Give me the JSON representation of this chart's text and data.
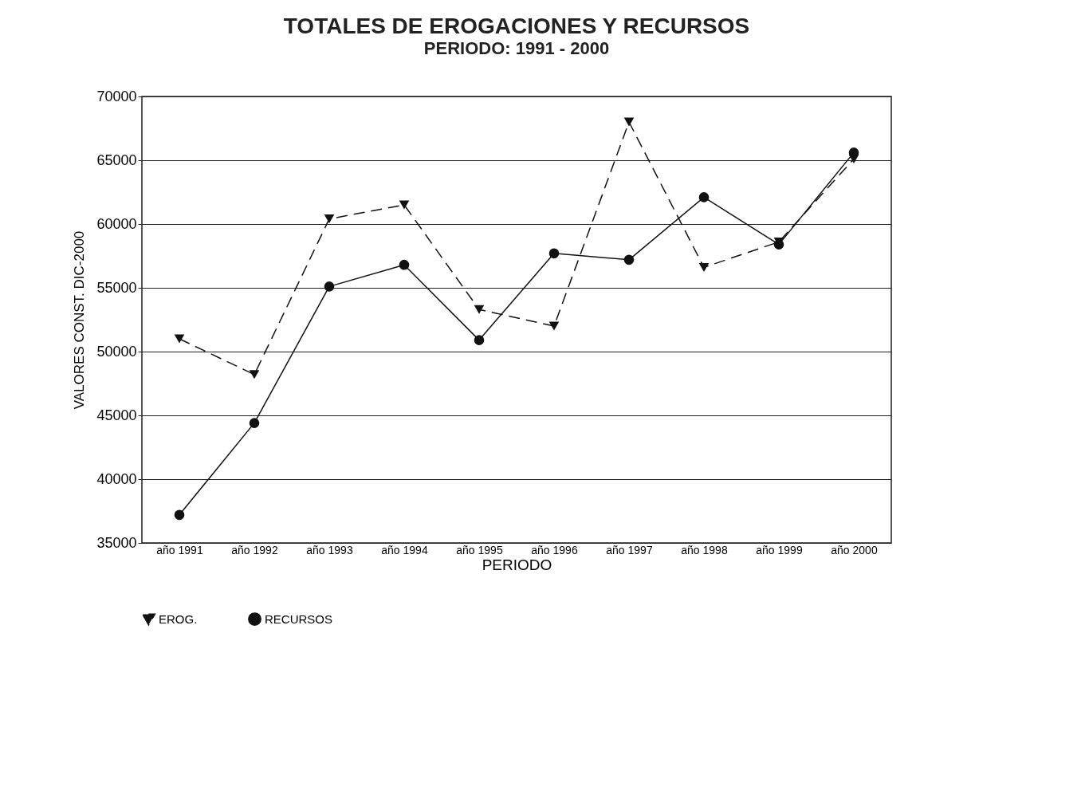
{
  "chart_data": {
    "type": "line",
    "title": "TOTALES DE EROGACIONES Y RECURSOS",
    "subtitle": "PERIODO: 1991 - 2000",
    "xlabel": "PERIODO",
    "ylabel": "VALORES CONST. DIC-2000",
    "categories": [
      "año 1991",
      "año 1992",
      "año 1993",
      "año 1994",
      "año 1995",
      "año 1996",
      "año 1997",
      "año 1998",
      "año 1999",
      "año 2000"
    ],
    "series": [
      {
        "name": "EROG.",
        "color": "#111111",
        "line_style": "dashed",
        "marker": "triangle",
        "values": [
          51000,
          48200,
          60400,
          61500,
          53300,
          52000,
          68000,
          56600,
          58600,
          65100
        ]
      },
      {
        "name": "RECURSOS",
        "color": "#111111",
        "line_style": "solid",
        "marker": "circle",
        "values": [
          37200,
          44400,
          55100,
          56800,
          50900,
          57700,
          57200,
          62100,
          58400,
          65600
        ]
      }
    ],
    "ylim": [
      35000,
      70000
    ],
    "yticks": [
      35000,
      40000,
      45000,
      50000,
      55000,
      60000,
      65000,
      70000
    ],
    "grid": "y",
    "legend": "bottom"
  }
}
